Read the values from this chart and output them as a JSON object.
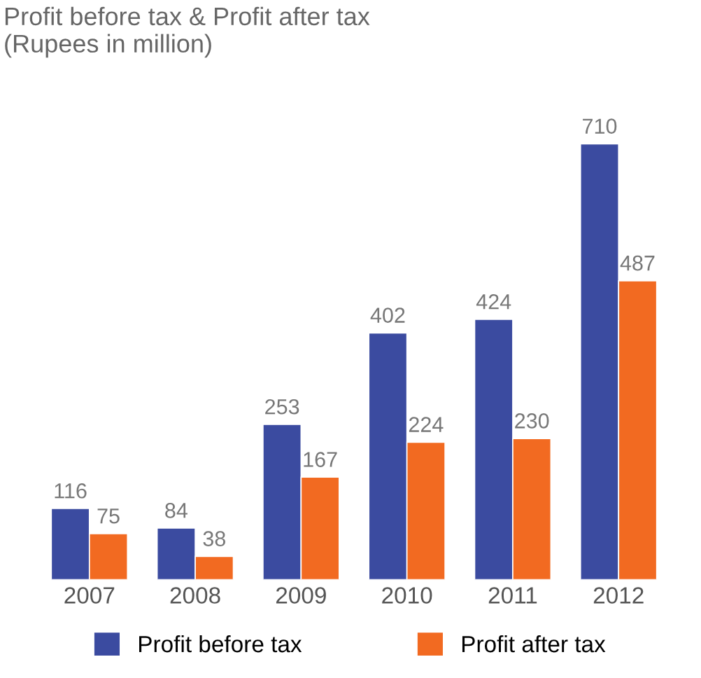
{
  "chart_data": {
    "type": "bar",
    "title": "Profit before tax & Profit after tax\n(Rupees in million)",
    "categories": [
      "2007",
      "2008",
      "2009",
      "2010",
      "2011",
      "2012"
    ],
    "series": [
      {
        "name": "Profit before tax",
        "color": "#3b4ba0",
        "values": [
          116,
          84,
          253,
          402,
          424,
          710
        ]
      },
      {
        "name": "Profit after tax",
        "color": "#f26a21",
        "values": [
          75,
          38,
          167,
          224,
          230,
          487
        ]
      }
    ],
    "data_labels": true,
    "legend": "bottom",
    "grid": false,
    "tick_labels": "x"
  }
}
